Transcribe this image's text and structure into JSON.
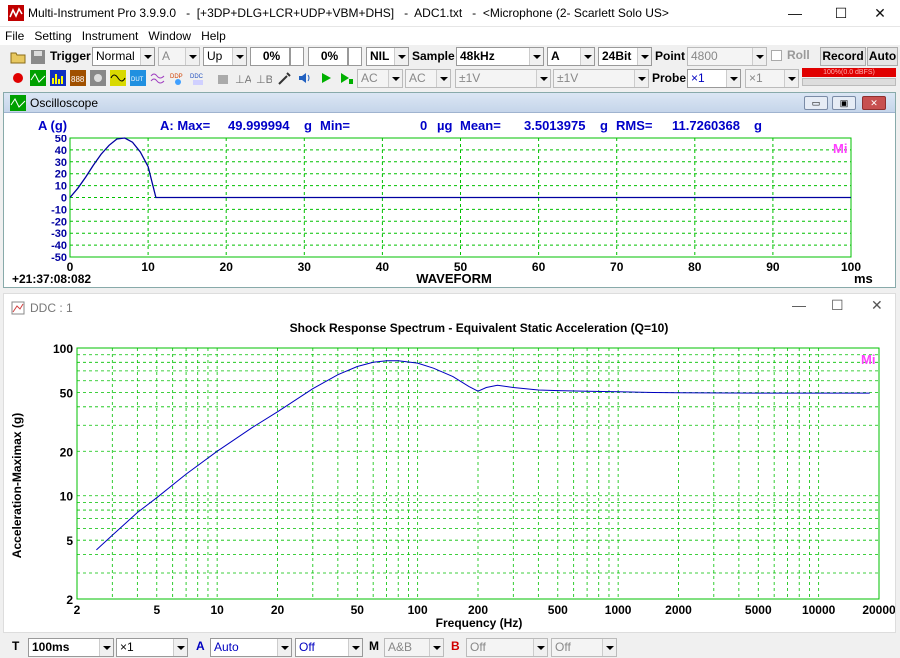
{
  "titlebar": {
    "title": "Multi-Instrument Pro 3.9.9.0   -  [+3DP+DLG+LCR+UDP+VBM+DHS]   -  ADC1.txt   -  <Microphone (2- Scarlett Solo US>",
    "minimize": "—",
    "maximize": "☐",
    "close": "✕"
  },
  "menu": [
    "File",
    "Setting",
    "Instrument",
    "Window",
    "Help"
  ],
  "toolbar1": {
    "trigger_label": "Trigger",
    "trigger_mode": "Normal",
    "trigger_channel": "A",
    "trigger_edge": "Up",
    "trigger_level_1": "0%",
    "trigger_level_2": "0%",
    "nil": "NIL",
    "sample_label": "Sample",
    "sample_rate": "48kHz",
    "channel": "A",
    "bit_depth": "24Bit",
    "point_label": "Point",
    "point_value": "4800",
    "roll_label": "Roll",
    "record_label": "Record",
    "auto_label": "Auto"
  },
  "toolbar2": {
    "coupling_a": "AC",
    "coupling_b": "AC",
    "range_a": "±1V",
    "range_b": "±1V",
    "probe_label": "Probe",
    "probe_a": "×1",
    "probe_b": "×1",
    "level_text": "100%(0.0 dBFS)"
  },
  "scope": {
    "title": "Oscilloscope",
    "channel_unit": "A (g)",
    "stats": {
      "max_label": "A: Max=",
      "max_value": "49.999994",
      "max_unit": "g",
      "min_label": "Min=",
      "min_value": "0",
      "min_unit": "µg",
      "mean_label": "Mean=",
      "mean_value": "3.5013975",
      "mean_unit": "g",
      "rms_label": "RMS=",
      "rms_value": "11.7260368",
      "rms_unit": "g"
    },
    "timestamp": "+21:37:08:082",
    "xlabel": "WAVEFORM",
    "xunit": "ms",
    "watermark": "Mi",
    "colors": {
      "grid": "#00c000",
      "trace": "#0000a0",
      "frame": "#00c000"
    }
  },
  "ddc": {
    "title": "DDC : 1",
    "watermark": "Mi"
  },
  "chart_data": [
    {
      "type": "line",
      "title": "",
      "xlabel": "WAVEFORM",
      "ylabel": "",
      "xlim": [
        0,
        100
      ],
      "ylim": [
        -50,
        50
      ],
      "x_ticks": [
        0,
        10,
        20,
        30,
        40,
        50,
        60,
        70,
        80,
        90,
        100
      ],
      "y_ticks": [
        50,
        40,
        30,
        20,
        10,
        0,
        -10,
        -20,
        -30,
        -40,
        -50
      ],
      "grid": true,
      "series": [
        {
          "x": [
            0,
            1,
            2,
            3,
            4,
            5,
            6,
            7,
            8,
            9,
            10,
            11,
            12,
            20,
            40,
            60,
            80,
            100
          ],
          "values": [
            0,
            7.7,
            17.1,
            27.2,
            36.5,
            43.9,
            49.2,
            50.0,
            46.5,
            38.2,
            26.0,
            0,
            0,
            0,
            0,
            0,
            0,
            0
          ]
        }
      ]
    },
    {
      "type": "line",
      "title": "Shock Response Spectrum - Equivalent Static Acceleration (Q=10)",
      "xlabel": "Frequency (Hz)",
      "ylabel": "Acceleration-Maximax (g)",
      "xscale": "log",
      "yscale": "log",
      "xlim": [
        2,
        20000
      ],
      "ylim": [
        2,
        100
      ],
      "x_ticks": [
        2,
        5,
        10,
        20,
        50,
        100,
        200,
        500,
        1000,
        2000,
        5000,
        10000,
        20000
      ],
      "y_ticks": [
        2,
        5,
        10,
        20,
        50,
        100
      ],
      "grid": true,
      "series": [
        {
          "x": [
            2.5,
            3,
            4,
            5,
            7,
            10,
            15,
            20,
            30,
            40,
            50,
            60,
            70,
            80,
            100,
            120,
            150,
            180,
            200,
            220,
            250,
            300,
            400,
            500,
            700,
            1000,
            1500,
            2000,
            5000,
            10000,
            18000
          ],
          "values": [
            4.3,
            5.4,
            7.7,
            9.7,
            14,
            20,
            29,
            37,
            53,
            66,
            75,
            80,
            82,
            82,
            79,
            73,
            64,
            55,
            51,
            54,
            56,
            54,
            52,
            51.5,
            51,
            50.5,
            50,
            49.8,
            49.5,
            49.5,
            49.5
          ]
        }
      ]
    }
  ],
  "bottombar": {
    "t_label": "T",
    "timebase": "100ms",
    "t_mult": "×1",
    "a_label": "A",
    "a_mode": "Auto",
    "a_off": "Off",
    "m_label": "M",
    "m_mode": "A&B",
    "b_label": "B",
    "b_off": "Off",
    "b_off2": "Off"
  }
}
